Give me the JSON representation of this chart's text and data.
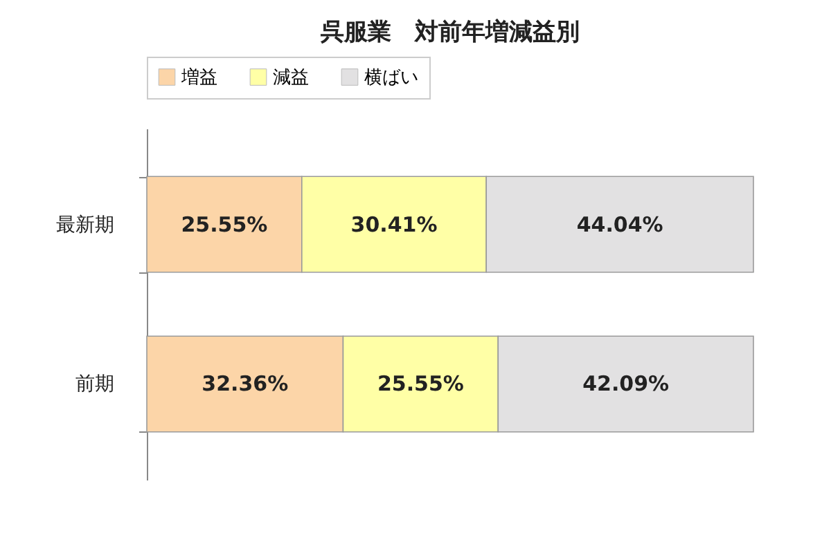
{
  "chart_data": {
    "type": "bar",
    "title": "呉服業　対前年増減益別",
    "orientation": "horizontal",
    "stacked": true,
    "legend": "top",
    "categories": [
      "最新期",
      "前期"
    ],
    "series": [
      {
        "name": "増益",
        "color": "#fcd5a8",
        "values": [
          25.55,
          32.36
        ],
        "value_labels": [
          "25.55%",
          "32.36%"
        ]
      },
      {
        "name": "減益",
        "color": "#ffffa6",
        "values": [
          30.41,
          25.55
        ],
        "value_labels": [
          "30.41%",
          "25.55%"
        ]
      },
      {
        "name": "横ばい",
        "color": "#e2e1e2",
        "values": [
          44.04,
          42.09
        ],
        "value_labels": [
          "44.04%",
          "42.09%"
        ]
      }
    ]
  }
}
